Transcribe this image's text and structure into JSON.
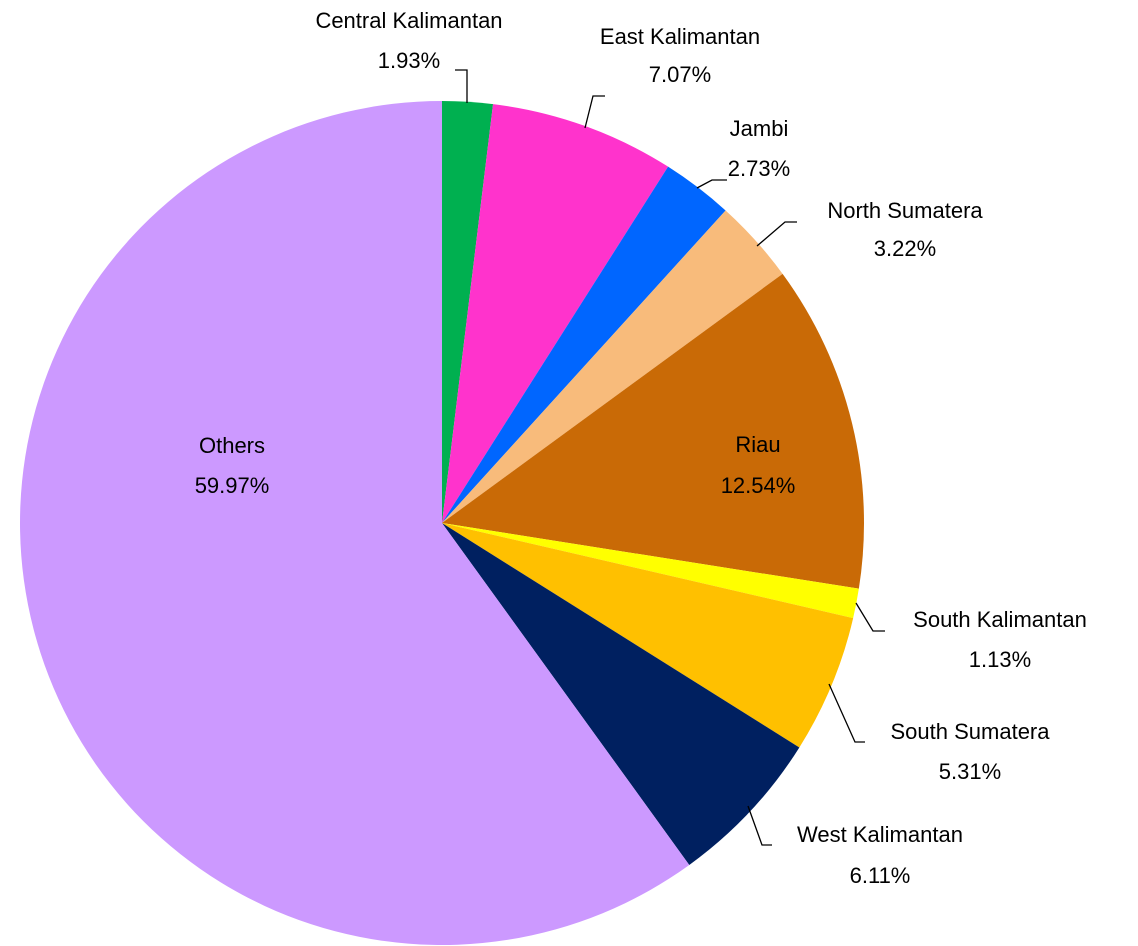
{
  "chart_data": {
    "type": "pie",
    "categories": [
      "Central Kalimantan",
      "East Kalimantan",
      "Jambi",
      "North Sumatera",
      "Riau",
      "South Kalimantan",
      "South Sumatera",
      "West Kalimantan",
      "Others"
    ],
    "values": [
      1.93,
      7.07,
      2.73,
      3.22,
      12.54,
      1.13,
      5.31,
      6.11,
      59.97
    ],
    "value_labels": [
      "1.93%",
      "7.07%",
      "2.73%",
      "3.22%",
      "12.54%",
      "1.13%",
      "5.31%",
      "6.11%",
      "59.97%"
    ],
    "colors": [
      "#00b050",
      "#ff33cc",
      "#0066ff",
      "#f8bb7b",
      "#c96a06",
      "#ffff00",
      "#ffc000",
      "#002060",
      "#cc99ff"
    ]
  }
}
